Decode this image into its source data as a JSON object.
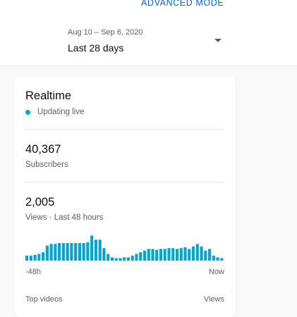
{
  "header": {
    "advanced_mode": "ADVANCED MODE",
    "date_range": "Aug 10 – Sep 6, 2020",
    "period": "Last 28 days"
  },
  "realtime": {
    "title": "Realtime",
    "status": "Updating live",
    "subscribers_value": "40,367",
    "subscribers_label": "Subscribers",
    "views_value": "2,005",
    "views_label": "Views · Last 48 hours",
    "axis_start": "-48h",
    "axis_end": "Now",
    "top_videos_label": "Top videos",
    "views_column_label": "Views"
  },
  "colors": {
    "accent_blue": "#065fd4",
    "bar_cyan": "#00a6cc",
    "live_dot": "#00a6cc"
  },
  "chart_data": {
    "type": "bar",
    "title": "",
    "xlabel": "",
    "ylabel": "",
    "x_range_labels": [
      "-48h",
      "Now"
    ],
    "values": [
      6,
      6,
      7,
      8,
      10,
      18,
      20,
      20,
      21,
      21,
      21,
      21,
      21,
      21,
      21,
      22,
      30,
      25,
      25,
      15,
      8,
      4,
      3,
      3,
      4,
      4,
      6,
      8,
      10,
      12,
      14,
      14,
      13,
      14,
      14,
      15,
      15,
      14,
      15,
      16,
      14,
      17,
      20,
      17,
      12,
      14,
      6,
      4,
      3
    ],
    "ylim": [
      0,
      32
    ]
  }
}
